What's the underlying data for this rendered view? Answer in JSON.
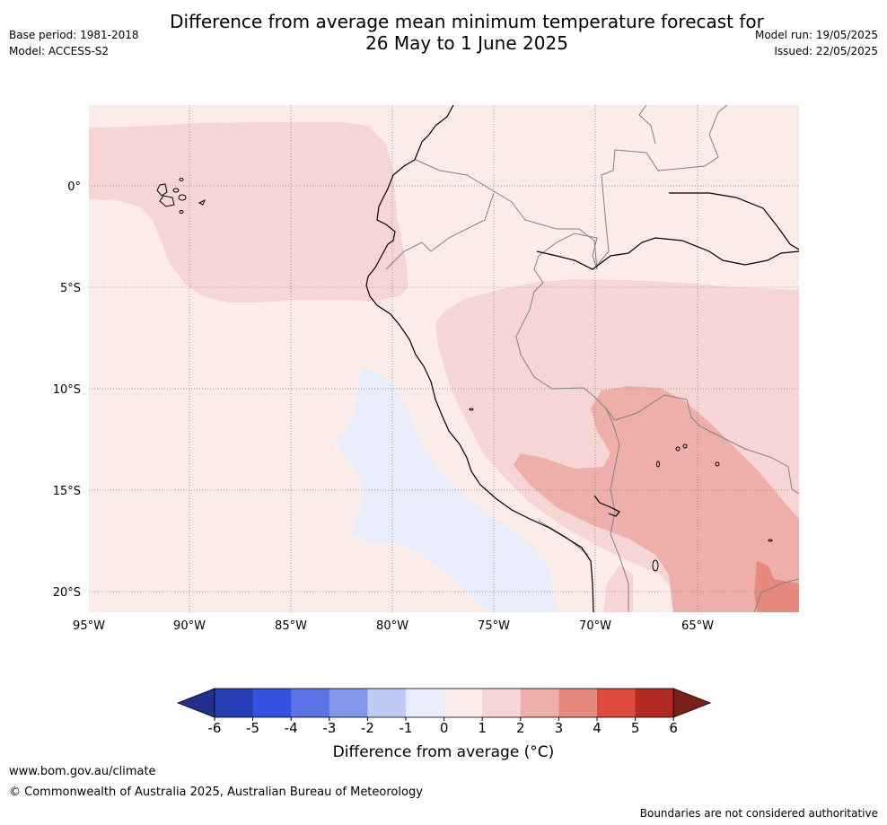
{
  "header": {
    "title_line1": "Difference from average mean minimum temperature forecast for",
    "title_line2": "26 May to 1 June 2025",
    "base_period": "Base period: 1981-2018",
    "model": "Model: ACCESS-S2",
    "model_run": "Model run: 19/05/2025",
    "issued": "Issued: 22/05/2025"
  },
  "map": {
    "lon_labels": [
      "95°W",
      "90°W",
      "85°W",
      "80°W",
      "75°W",
      "70°W",
      "65°W"
    ],
    "lat_labels": [
      "0°",
      "5°S",
      "10°S",
      "15°S",
      "20°S"
    ],
    "colors": {
      "anomaly_0_1": "#fbebe9",
      "anomaly_1_2": "#f5d6d4",
      "anomaly_2_3": "#eeaeaa",
      "anomaly_3_4": "#e88980",
      "anomaly_-1_0": "#e9edfb",
      "coastline": "#000000",
      "borders": "#808080",
      "gridlines": "#888888"
    }
  },
  "colorbar": {
    "title": "Difference from average (°C)",
    "ticks": [
      "-6",
      "-5",
      "-4",
      "-3",
      "-2",
      "-1",
      "0",
      "1",
      "2",
      "3",
      "4",
      "5",
      "6"
    ],
    "colors": [
      "#242f8c",
      "#263eb3",
      "#3452e2",
      "#5a73e6",
      "#8497eb",
      "#c1c9f5",
      "#e9edfb",
      "#fbebe9",
      "#f5d6d4",
      "#eeaeaa",
      "#e88980",
      "#dc4d40",
      "#b02a22",
      "#7a1f1a"
    ]
  },
  "footer": {
    "url": "www.bom.gov.au/climate",
    "copyright": "© Commonwealth of Australia 2025, Australian Bureau of Meteorology",
    "disclaimer": "Boundaries are not considered authoritative"
  }
}
